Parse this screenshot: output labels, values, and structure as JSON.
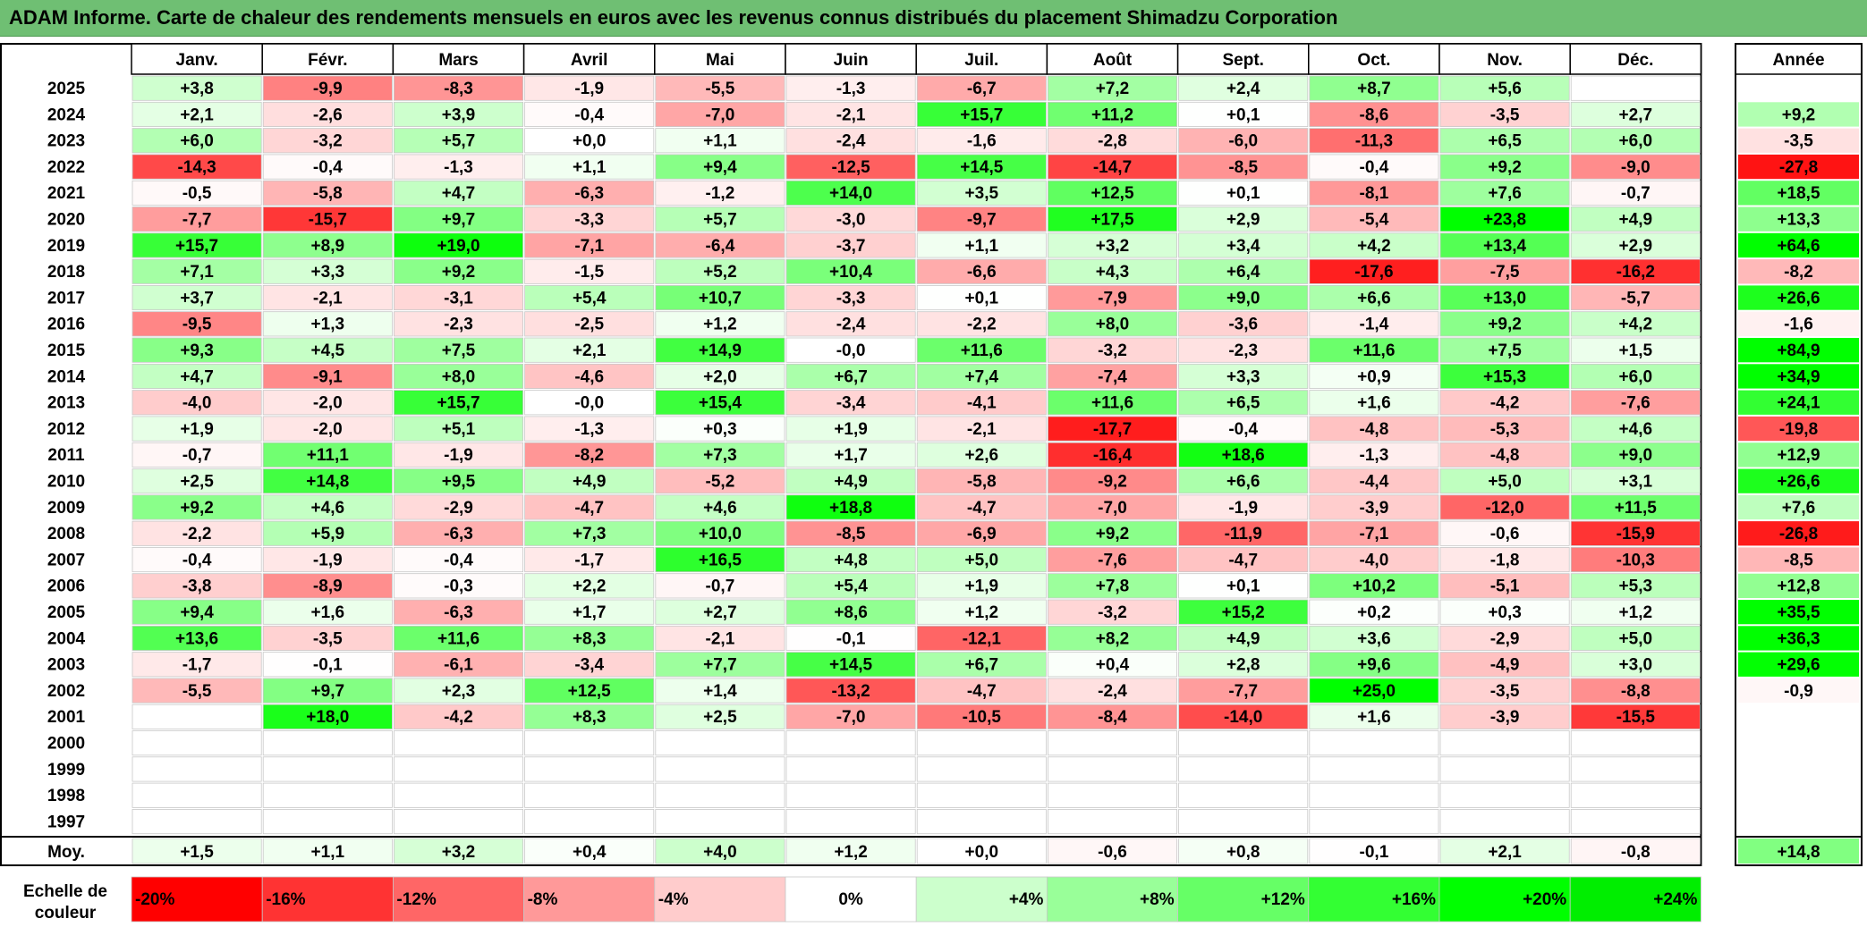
{
  "title": "ADAM Informe. Carte de chaleur des rendements mensuels en euros avec les revenus connus distribués du placement Shimadzu Corporation",
  "chart_data": {
    "type": "heatmap",
    "months": [
      "Janv.",
      "Févr.",
      "Mars",
      "Avril",
      "Mai",
      "Juin",
      "Juil.",
      "Août",
      "Sept.",
      "Oct.",
      "Nov.",
      "Déc."
    ],
    "year_header": "Année",
    "rows": [
      {
        "year": "2025",
        "values": [
          "+3,8",
          "-9,9",
          "-8,3",
          "-1,9",
          "-5,5",
          "-1,3",
          "-6,7",
          "+7,2",
          "+2,4",
          "+8,7",
          "+5,6",
          ""
        ],
        "annual": ""
      },
      {
        "year": "2024",
        "values": [
          "+2,1",
          "-2,6",
          "+3,9",
          "-0,4",
          "-7,0",
          "-2,1",
          "+15,7",
          "+11,2",
          "+0,1",
          "-8,6",
          "-3,5",
          "+2,7"
        ],
        "annual": "+9,2"
      },
      {
        "year": "2023",
        "values": [
          "+6,0",
          "-3,2",
          "+5,7",
          "+0,0",
          "+1,1",
          "-2,4",
          "-1,6",
          "-2,8",
          "-6,0",
          "-11,3",
          "+6,5",
          "+6,0"
        ],
        "annual": "-3,5"
      },
      {
        "year": "2022",
        "values": [
          "-14,3",
          "-0,4",
          "-1,3",
          "+1,1",
          "+9,4",
          "-12,5",
          "+14,5",
          "-14,7",
          "-8,5",
          "-0,4",
          "+9,2",
          "-9,0"
        ],
        "annual": "-27,8"
      },
      {
        "year": "2021",
        "values": [
          "-0,5",
          "-5,8",
          "+4,7",
          "-6,3",
          "-1,2",
          "+14,0",
          "+3,5",
          "+12,5",
          "+0,1",
          "-8,1",
          "+7,6",
          "-0,7"
        ],
        "annual": "+18,5"
      },
      {
        "year": "2020",
        "values": [
          "-7,7",
          "-15,7",
          "+9,7",
          "-3,3",
          "+5,7",
          "-3,0",
          "-9,7",
          "+17,5",
          "+2,9",
          "-5,4",
          "+23,8",
          "+4,9"
        ],
        "annual": "+13,3"
      },
      {
        "year": "2019",
        "values": [
          "+15,7",
          "+8,9",
          "+19,0",
          "-7,1",
          "-6,4",
          "-3,7",
          "+1,1",
          "+3,2",
          "+3,4",
          "+4,2",
          "+13,4",
          "+2,9"
        ],
        "annual": "+64,6"
      },
      {
        "year": "2018",
        "values": [
          "+7,1",
          "+3,3",
          "+9,2",
          "-1,5",
          "+5,2",
          "+10,4",
          "-6,6",
          "+4,3",
          "+6,4",
          "-17,6",
          "-7,5",
          "-16,2"
        ],
        "annual": "-8,2"
      },
      {
        "year": "2017",
        "values": [
          "+3,7",
          "-2,1",
          "-3,1",
          "+5,4",
          "+10,7",
          "-3,3",
          "+0,1",
          "-7,9",
          "+9,0",
          "+6,6",
          "+13,0",
          "-5,7"
        ],
        "annual": "+26,6"
      },
      {
        "year": "2016",
        "values": [
          "-9,5",
          "+1,3",
          "-2,3",
          "-2,5",
          "+1,2",
          "-2,4",
          "-2,2",
          "+8,0",
          "-3,6",
          "-1,4",
          "+9,2",
          "+4,2"
        ],
        "annual": "-1,6"
      },
      {
        "year": "2015",
        "values": [
          "+9,3",
          "+4,5",
          "+7,5",
          "+2,1",
          "+14,9",
          "-0,0",
          "+11,6",
          "-3,2",
          "-2,3",
          "+11,6",
          "+7,5",
          "+1,5"
        ],
        "annual": "+84,9"
      },
      {
        "year": "2014",
        "values": [
          "+4,7",
          "-9,1",
          "+8,0",
          "-4,6",
          "+2,0",
          "+6,7",
          "+7,4",
          "-7,4",
          "+3,3",
          "+0,9",
          "+15,3",
          "+6,0"
        ],
        "annual": "+34,9"
      },
      {
        "year": "2013",
        "values": [
          "-4,0",
          "-2,0",
          "+15,7",
          "-0,0",
          "+15,4",
          "-3,4",
          "-4,1",
          "+11,6",
          "+6,5",
          "+1,6",
          "-4,2",
          "-7,6"
        ],
        "annual": "+24,1"
      },
      {
        "year": "2012",
        "values": [
          "+1,9",
          "-2,0",
          "+5,1",
          "-1,3",
          "+0,3",
          "+1,9",
          "-2,1",
          "-17,7",
          "-0,4",
          "-4,8",
          "-5,3",
          "+4,6"
        ],
        "annual": "-19,8"
      },
      {
        "year": "2011",
        "values": [
          "-0,7",
          "+11,1",
          "-1,9",
          "-8,2",
          "+7,3",
          "+1,7",
          "+2,6",
          "-16,4",
          "+18,6",
          "-1,3",
          "-4,8",
          "+9,0"
        ],
        "annual": "+12,9"
      },
      {
        "year": "2010",
        "values": [
          "+2,5",
          "+14,8",
          "+9,5",
          "+4,9",
          "-5,2",
          "+4,9",
          "-5,8",
          "-9,2",
          "+6,6",
          "-4,4",
          "+5,0",
          "+3,1"
        ],
        "annual": "+26,6"
      },
      {
        "year": "2009",
        "values": [
          "+9,2",
          "+4,6",
          "-2,9",
          "-4,7",
          "+4,6",
          "+18,8",
          "-4,7",
          "-7,0",
          "-1,9",
          "-3,9",
          "-12,0",
          "+11,5"
        ],
        "annual": "+7,6"
      },
      {
        "year": "2008",
        "values": [
          "-2,2",
          "+5,9",
          "-6,3",
          "+7,3",
          "+10,0",
          "-8,5",
          "-6,9",
          "+9,2",
          "-11,9",
          "-7,1",
          "-0,6",
          "-15,9"
        ],
        "annual": "-26,8"
      },
      {
        "year": "2007",
        "values": [
          "-0,4",
          "-1,9",
          "-0,4",
          "-1,7",
          "+16,5",
          "+4,8",
          "+5,0",
          "-7,6",
          "-4,7",
          "-4,0",
          "-1,8",
          "-10,3"
        ],
        "annual": "-8,5"
      },
      {
        "year": "2006",
        "values": [
          "-3,8",
          "-8,9",
          "-0,3",
          "+2,2",
          "-0,7",
          "+5,4",
          "+1,9",
          "+7,8",
          "+0,1",
          "+10,2",
          "-5,1",
          "+5,3"
        ],
        "annual": "+12,8"
      },
      {
        "year": "2005",
        "values": [
          "+9,4",
          "+1,6",
          "-6,3",
          "+1,7",
          "+2,7",
          "+8,6",
          "+1,2",
          "-3,2",
          "+15,2",
          "+0,2",
          "+0,3",
          "+1,2"
        ],
        "annual": "+35,5"
      },
      {
        "year": "2004",
        "values": [
          "+13,6",
          "-3,5",
          "+11,6",
          "+8,3",
          "-2,1",
          "-0,1",
          "-12,1",
          "+8,2",
          "+4,9",
          "+3,6",
          "-2,9",
          "+5,0"
        ],
        "annual": "+36,3"
      },
      {
        "year": "2003",
        "values": [
          "-1,7",
          "-0,1",
          "-6,1",
          "-3,4",
          "+7,7",
          "+14,5",
          "+6,7",
          "+0,4",
          "+2,8",
          "+9,6",
          "-4,9",
          "+3,0"
        ],
        "annual": "+29,6"
      },
      {
        "year": "2002",
        "values": [
          "-5,5",
          "+9,7",
          "+2,3",
          "+12,5",
          "+1,4",
          "-13,2",
          "-4,7",
          "-2,4",
          "-7,7",
          "+25,0",
          "-3,5",
          "-8,8"
        ],
        "annual": "-0,9"
      },
      {
        "year": "2001",
        "values": [
          "",
          "+18,0",
          "-4,2",
          "+8,3",
          "+2,5",
          "-7,0",
          "-10,5",
          "-8,4",
          "-14,0",
          "+1,6",
          "-3,9",
          "-15,5"
        ],
        "annual": ""
      },
      {
        "year": "2000",
        "values": [
          "",
          "",
          "",
          "",
          "",
          "",
          "",
          "",
          "",
          "",
          "",
          ""
        ],
        "annual": ""
      },
      {
        "year": "1999",
        "values": [
          "",
          "",
          "",
          "",
          "",
          "",
          "",
          "",
          "",
          "",
          "",
          ""
        ],
        "annual": ""
      },
      {
        "year": "1998",
        "values": [
          "",
          "",
          "",
          "",
          "",
          "",
          "",
          "",
          "",
          "",
          "",
          ""
        ],
        "annual": ""
      },
      {
        "year": "1997",
        "values": [
          "",
          "",
          "",
          "",
          "",
          "",
          "",
          "",
          "",
          "",
          "",
          ""
        ],
        "annual": ""
      }
    ],
    "average": {
      "label": "Moy.",
      "values": [
        "+1,5",
        "+1,1",
        "+3,2",
        "+0,4",
        "+4,0",
        "+1,2",
        "+0,0",
        "-0,6",
        "+0,8",
        "-0,1",
        "+2,1",
        "-0,8"
      ],
      "annual": "+14,8"
    },
    "scale": {
      "label_line1": "Echelle de",
      "label_line2": "couleur",
      "steps": [
        {
          "label": "-20%",
          "value": -20,
          "color": "#ff0000"
        },
        {
          "label": "-16%",
          "value": -16,
          "color": "#ff3333"
        },
        {
          "label": "-12%",
          "value": -12,
          "color": "#ff6666"
        },
        {
          "label": "-8%",
          "value": -8,
          "color": "#ff9999"
        },
        {
          "label": "-4%",
          "value": -4,
          "color": "#ffcccc"
        },
        {
          "label": "0%",
          "value": 0,
          "color": "#ffffff"
        },
        {
          "label": "+4%",
          "value": 4,
          "color": "#ccffcc"
        },
        {
          "label": "+8%",
          "value": 8,
          "color": "#99ff99"
        },
        {
          "label": "+12%",
          "value": 12,
          "color": "#66ff66"
        },
        {
          "label": "+16%",
          "value": 16,
          "color": "#33ff33"
        },
        {
          "label": "+20%",
          "value": 20,
          "color": "#00ff00"
        },
        {
          "label": "+24%",
          "value": 24,
          "color": "#00ee00"
        }
      ]
    },
    "colors": {
      "title_bar": "#6fbf73",
      "negative_max": "#ff0000",
      "positive_max": "#00ff00",
      "neutral": "#ffffff"
    }
  }
}
